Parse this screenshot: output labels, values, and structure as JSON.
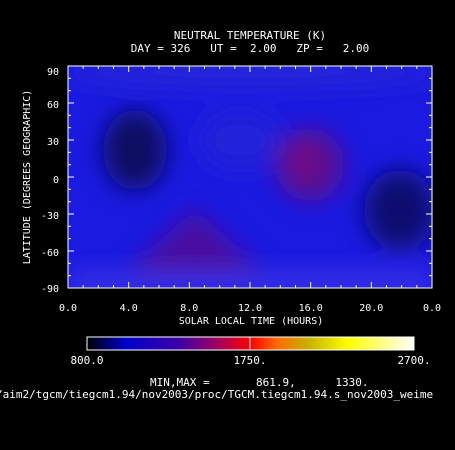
{
  "chart_data": {
    "type": "heatmap",
    "title": "NEUTRAL TEMPERATURE (K)",
    "subtitle": "DAY = 326   UT =  2.00   ZP =   2.00",
    "xlabel": "SOLAR LOCAL TIME (HOURS)",
    "ylabel": "LATITUDE (DEGREES GEOGRAPHIC)",
    "xlim": [
      0,
      24
    ],
    "ylim": [
      -90,
      90
    ],
    "x_tick_labels": [
      "0.0",
      "4.0",
      "8.0",
      "12.0",
      "16.0",
      "20.0",
      "0.0"
    ],
    "y_tick_labels": [
      "90",
      "60",
      "30",
      "0",
      "-30",
      "-60",
      "-90"
    ],
    "y_tick_values": [
      90,
      60,
      30,
      0,
      -30,
      -60,
      -90
    ],
    "colorbar": {
      "min_label": "800.0",
      "mid_label": "1750.",
      "max_label": "2700.",
      "min": 800,
      "max": 2700
    },
    "minmax_text": "MIN,MAX =       861.9,      1330.",
    "data_min": 861.9,
    "data_max": 1330,
    "features": [
      {
        "slt": 15.5,
        "lat": 10,
        "temp": 1310
      },
      {
        "slt": 16.5,
        "lat": 0,
        "temp": 1300
      },
      {
        "slt": 8.2,
        "lat": -35,
        "temp": 1230
      },
      {
        "slt": 3.5,
        "lat": 35,
        "temp": 870
      },
      {
        "slt": 21.5,
        "lat": -25,
        "temp": 900
      }
    ],
    "grid": false,
    "legend": "none"
  },
  "footer_path": "/aim2/tgcm/tiegcm1.94/nov2003/proc/TGCM.tiegcm1.94.s_nov2003_weime"
}
